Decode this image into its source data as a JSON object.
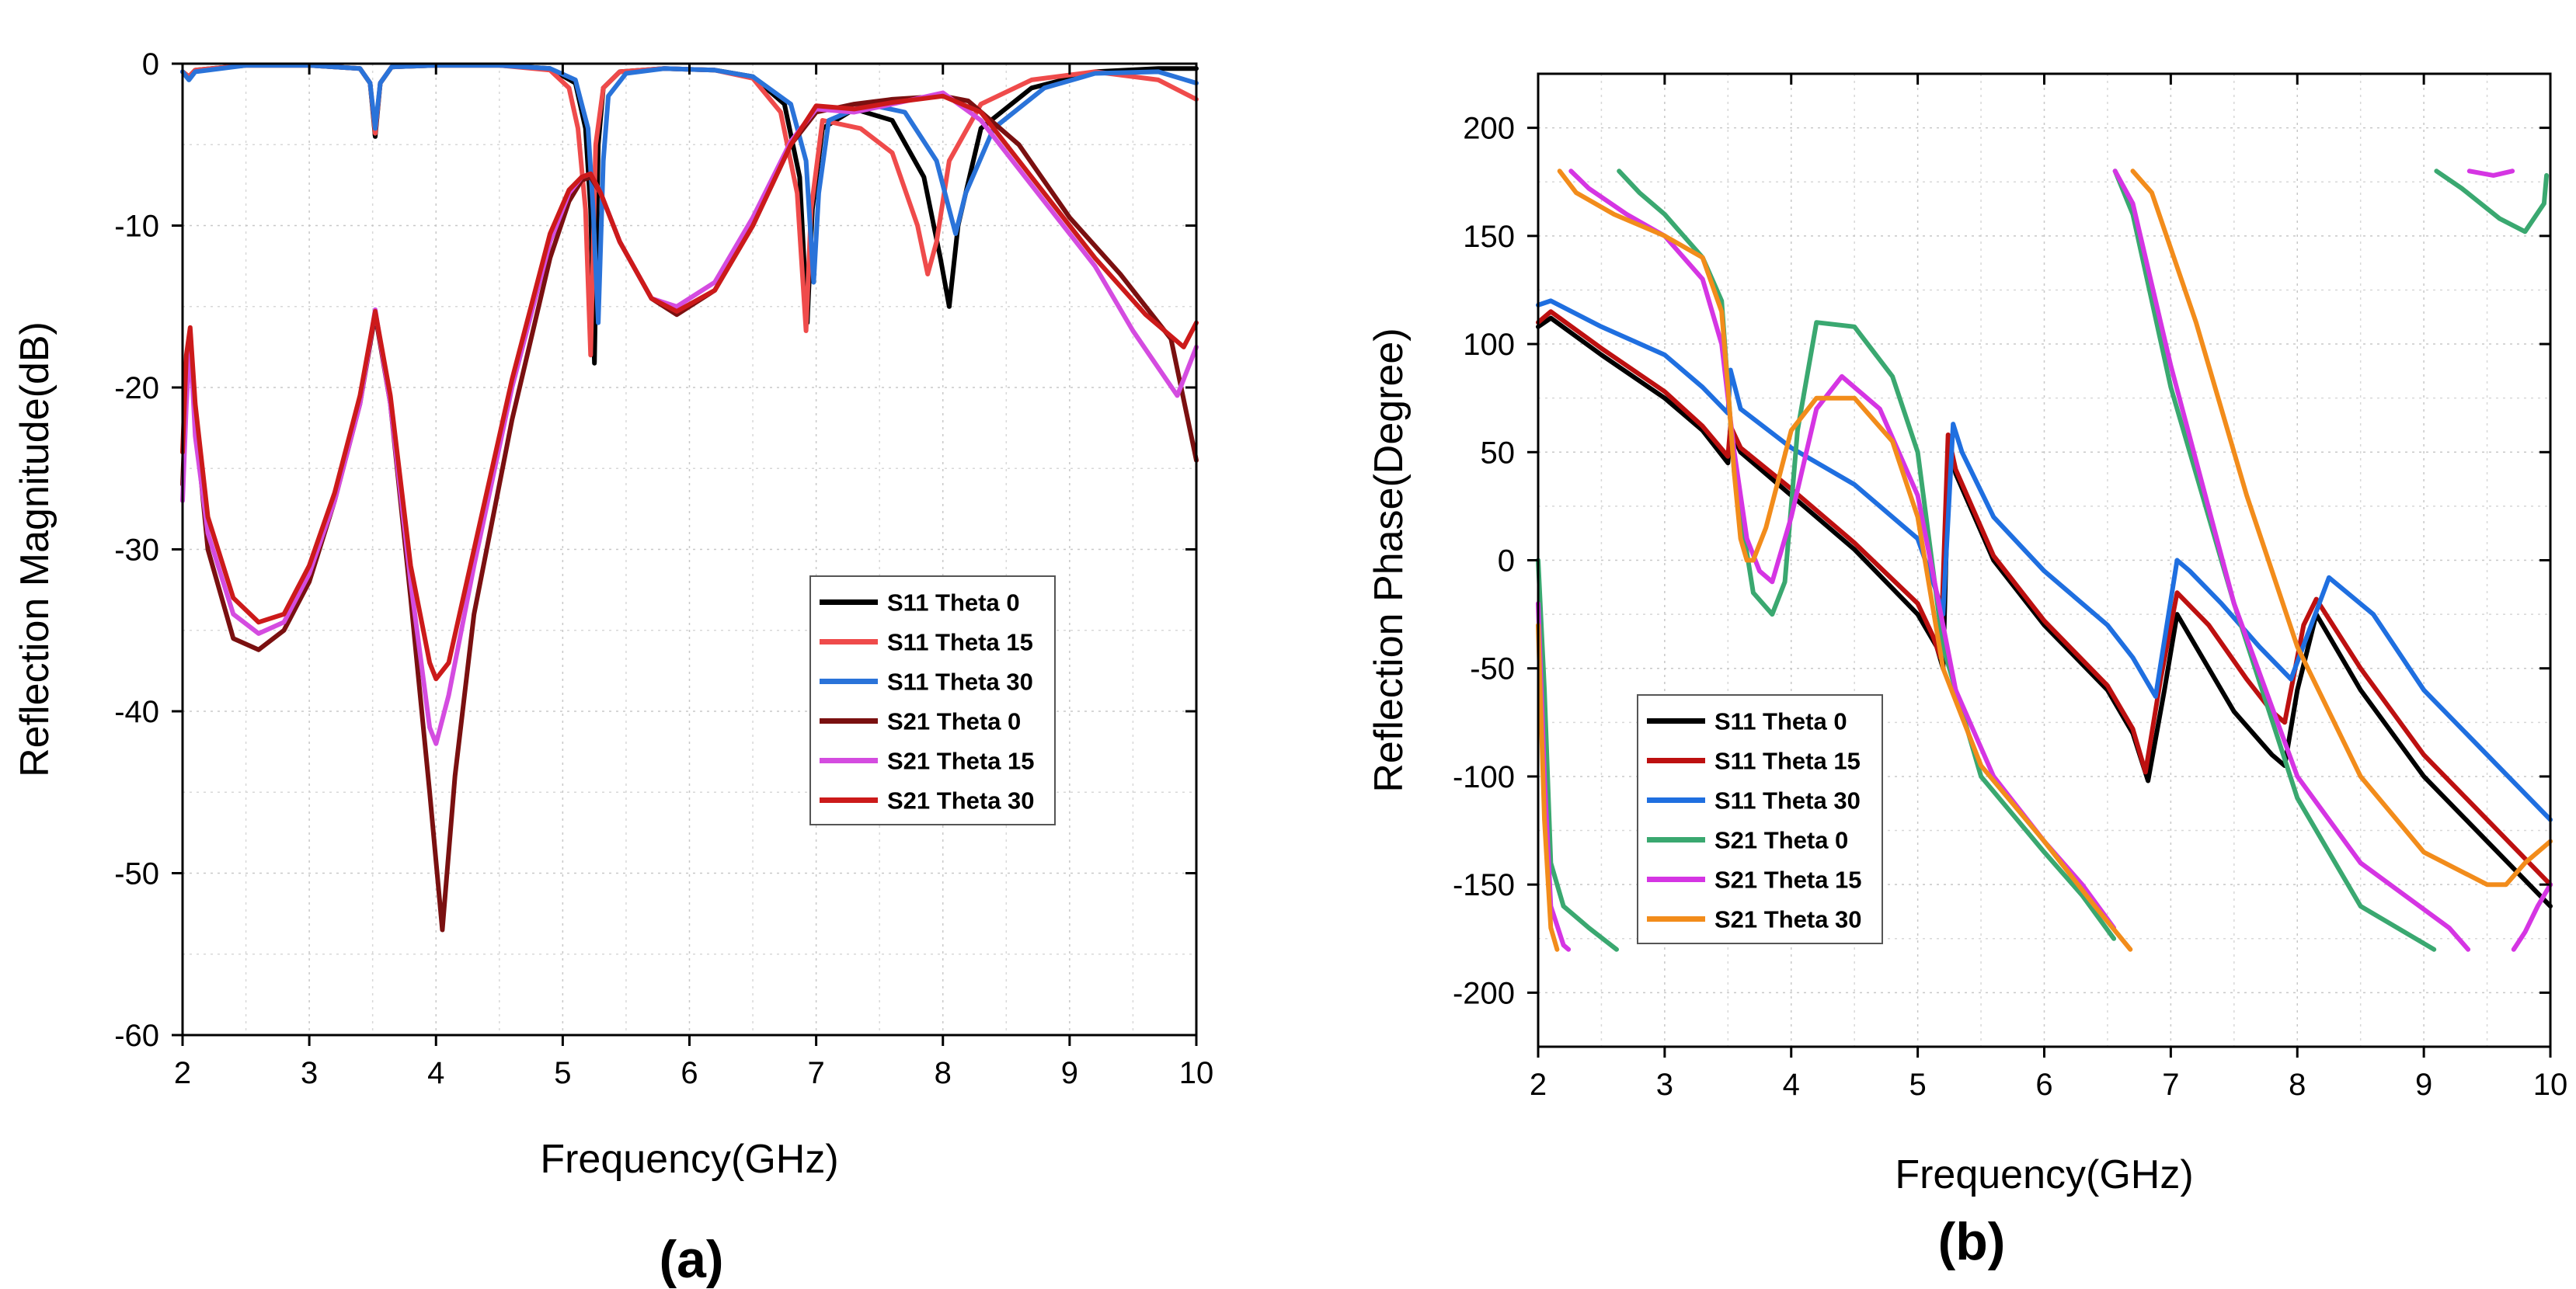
{
  "chart_data": [
    {
      "type": "line",
      "panel_label": "(a)",
      "xlabel": "Frequency(GHz)",
      "ylabel": "Reflection Magnitude(dB)",
      "xlim": [
        2,
        10
      ],
      "ylim": [
        -60,
        0
      ],
      "xticks": [
        2,
        3,
        4,
        5,
        6,
        7,
        8,
        9,
        10
      ],
      "yticks": [
        0,
        -10,
        -20,
        -30,
        -40,
        -50,
        -60
      ],
      "grid": true,
      "legend_position": "center-right",
      "series": [
        {
          "name": "S11 Theta 0",
          "color": "#000000",
          "x": [
            2,
            2.05,
            2.1,
            2.5,
            3,
            3.4,
            3.48,
            3.52,
            3.56,
            3.65,
            4,
            4.5,
            4.9,
            5.1,
            5.18,
            5.22,
            5.25,
            5.28,
            5.32,
            5.45,
            5.8,
            6.2,
            6.5,
            6.75,
            6.87,
            6.93,
            6.97,
            7.05,
            7.3,
            7.6,
            7.85,
            7.98,
            8.05,
            8.12,
            8.3,
            8.7,
            9.2,
            9.7,
            10
          ],
          "y": [
            -0.5,
            -0.8,
            -0.4,
            -0.1,
            -0.1,
            -0.3,
            -1.2,
            -4.5,
            -1.2,
            -0.2,
            -0.1,
            -0.1,
            -0.3,
            -1.2,
            -4,
            -9,
            -18.5,
            -5,
            -1.5,
            -0.5,
            -0.3,
            -0.4,
            -0.8,
            -2.5,
            -7,
            -16,
            -9,
            -4,
            -2.8,
            -3.5,
            -7,
            -12,
            -15,
            -10,
            -4,
            -1.5,
            -0.5,
            -0.3,
            -0.3
          ]
        },
        {
          "name": "S11 Theta 15",
          "color": "#ef4b4b",
          "x": [
            2,
            2.05,
            2.1,
            2.5,
            3,
            3.4,
            3.48,
            3.52,
            3.56,
            3.65,
            4,
            4.5,
            4.9,
            5.05,
            5.12,
            5.18,
            5.22,
            5.26,
            5.32,
            5.45,
            5.8,
            6.2,
            6.5,
            6.72,
            6.85,
            6.92,
            6.96,
            7.05,
            7.35,
            7.6,
            7.8,
            7.88,
            7.95,
            8.05,
            8.3,
            8.7,
            9.2,
            9.7,
            10
          ],
          "y": [
            -0.5,
            -0.8,
            -0.4,
            -0.1,
            -0.1,
            -0.3,
            -1.2,
            -4.3,
            -1.2,
            -0.2,
            -0.1,
            -0.1,
            -0.4,
            -1.5,
            -4,
            -9,
            -18,
            -5,
            -1.5,
            -0.5,
            -0.3,
            -0.4,
            -0.9,
            -3,
            -8,
            -16.5,
            -9,
            -3.5,
            -4,
            -5.5,
            -10,
            -13,
            -11,
            -6,
            -2.5,
            -1,
            -0.5,
            -1,
            -2.2
          ]
        },
        {
          "name": "S11 Theta 30",
          "color": "#2a73d9",
          "x": [
            2,
            2.05,
            2.1,
            2.5,
            3,
            3.4,
            3.48,
            3.52,
            3.56,
            3.65,
            4,
            4.5,
            4.9,
            5.1,
            5.2,
            5.24,
            5.28,
            5.32,
            5.36,
            5.5,
            5.8,
            6.2,
            6.5,
            6.8,
            6.92,
            6.98,
            7.02,
            7.1,
            7.4,
            7.7,
            7.95,
            8.05,
            8.1,
            8.18,
            8.4,
            8.8,
            9.2,
            9.7,
            10
          ],
          "y": [
            -0.5,
            -1,
            -0.5,
            -0.1,
            -0.1,
            -0.3,
            -1.2,
            -4,
            -1.2,
            -0.2,
            -0.1,
            -0.1,
            -0.3,
            -1,
            -4,
            -9,
            -16,
            -6,
            -2,
            -0.6,
            -0.3,
            -0.4,
            -0.8,
            -2.5,
            -6,
            -13.5,
            -8,
            -3.5,
            -2.5,
            -3,
            -6,
            -9,
            -10.5,
            -8,
            -4,
            -1.5,
            -0.6,
            -0.5,
            -1.2
          ]
        },
        {
          "name": "S21 Theta 0",
          "color": "#7a1010",
          "x": [
            2,
            2.03,
            2.06,
            2.1,
            2.2,
            2.4,
            2.6,
            2.8,
            3,
            3.2,
            3.4,
            3.52,
            3.64,
            3.8,
            3.95,
            4.05,
            4.15,
            4.3,
            4.6,
            4.9,
            5.05,
            5.15,
            5.22,
            5.3,
            5.45,
            5.7,
            5.9,
            6.2,
            6.5,
            6.8,
            7,
            7.3,
            7.6,
            8,
            8.2,
            8.6,
            9,
            9.4,
            9.8,
            10
          ],
          "y": [
            -26,
            -20,
            -16.5,
            -22,
            -30,
            -35.5,
            -36.2,
            -35,
            -32,
            -27,
            -21,
            -15.5,
            -21,
            -33,
            -45,
            -53.5,
            -44,
            -34,
            -22,
            -12,
            -8.5,
            -7.2,
            -7,
            -8,
            -11,
            -14.5,
            -15.5,
            -14,
            -10,
            -5,
            -3,
            -2.5,
            -2.2,
            -2,
            -2.3,
            -5,
            -9.5,
            -13,
            -17,
            -24.5
          ]
        },
        {
          "name": "S21 Theta 15",
          "color": "#d44ce0",
          "x": [
            2,
            2.03,
            2.06,
            2.1,
            2.2,
            2.4,
            2.6,
            2.8,
            3,
            3.2,
            3.4,
            3.52,
            3.64,
            3.8,
            3.95,
            4,
            4.1,
            4.3,
            4.6,
            4.9,
            5.05,
            5.15,
            5.22,
            5.3,
            5.45,
            5.7,
            5.9,
            6.2,
            6.5,
            6.8,
            7,
            7.3,
            7.6,
            8,
            8.3,
            8.7,
            9.2,
            9.5,
            9.85,
            10
          ],
          "y": [
            -27,
            -21,
            -17,
            -23,
            -29,
            -34,
            -35.2,
            -34.5,
            -31.5,
            -27,
            -21,
            -15.2,
            -21,
            -32,
            -41,
            -42,
            -39,
            -31,
            -20,
            -11,
            -8,
            -7,
            -6.8,
            -8,
            -11,
            -14.5,
            -15,
            -13.5,
            -9.5,
            -4.8,
            -2.8,
            -3,
            -2.5,
            -1.8,
            -3.5,
            -7.5,
            -12.5,
            -16.5,
            -20.5,
            -17.5
          ]
        },
        {
          "name": "S21 Theta 30",
          "color": "#cc1a1a",
          "x": [
            2,
            2.03,
            2.06,
            2.1,
            2.2,
            2.4,
            2.6,
            2.8,
            3,
            3.2,
            3.4,
            3.52,
            3.64,
            3.8,
            3.95,
            4,
            4.1,
            4.3,
            4.6,
            4.9,
            5.05,
            5.15,
            5.22,
            5.3,
            5.45,
            5.7,
            5.9,
            6.2,
            6.5,
            6.8,
            7,
            7.3,
            7.6,
            8,
            8.3,
            8.7,
            9.2,
            9.6,
            9.9,
            10
          ],
          "y": [
            -24,
            -18,
            -16.3,
            -21,
            -28,
            -33,
            -34.5,
            -34,
            -31,
            -26.5,
            -20.5,
            -15.3,
            -20.5,
            -31,
            -37,
            -38,
            -37,
            -30,
            -19.5,
            -10.5,
            -7.8,
            -7,
            -6.8,
            -8,
            -11,
            -14.5,
            -15.3,
            -14,
            -10,
            -5,
            -2.6,
            -2.8,
            -2.4,
            -2,
            -3,
            -7,
            -12,
            -15.5,
            -17.5,
            -16
          ]
        }
      ]
    },
    {
      "type": "line",
      "panel_label": "(b)",
      "xlabel": "Frequency(GHz)",
      "ylabel": "Reflection Phase(Degree)",
      "xlim": [
        2,
        10
      ],
      "ylim": [
        -225,
        225
      ],
      "xticks": [
        2,
        3,
        4,
        5,
        6,
        7,
        8,
        9,
        10
      ],
      "yticks": [
        200,
        150,
        100,
        50,
        0,
        -50,
        -100,
        -150,
        -200
      ],
      "grid": true,
      "legend_position": "lower-left",
      "series": [
        {
          "name": "S11 Theta 0",
          "color": "#000000",
          "x": [
            2,
            2.1,
            2.5,
            3,
            3.3,
            3.5,
            3.52,
            3.6,
            4,
            4.5,
            5,
            5.15,
            5.2,
            5.25,
            5.3,
            5.6,
            6,
            6.5,
            6.7,
            6.82,
            6.95,
            7.05,
            7.2,
            7.5,
            7.8,
            7.9,
            8,
            8.15,
            8.5,
            9,
            9.5,
            10
          ],
          "y": [
            108,
            112,
            95,
            75,
            60,
            45,
            60,
            50,
            30,
            5,
            -25,
            -40,
            -50,
            55,
            40,
            0,
            -30,
            -60,
            -80,
            -102,
            -60,
            -25,
            -40,
            -70,
            -90,
            -95,
            -60,
            -25,
            -60,
            -100,
            -130,
            -160
          ]
        },
        {
          "name": "S11 Theta 15",
          "color": "#bd1010",
          "x": [
            2,
            2.1,
            2.5,
            3,
            3.3,
            3.5,
            3.52,
            3.6,
            4,
            4.5,
            5,
            5.12,
            5.18,
            5.24,
            5.3,
            5.6,
            6,
            6.5,
            6.7,
            6.8,
            6.92,
            7.05,
            7.3,
            7.6,
            7.8,
            7.9,
            8.05,
            8.15,
            8.5,
            9,
            9.5,
            10
          ],
          "y": [
            110,
            115,
            98,
            78,
            62,
            48,
            62,
            52,
            33,
            8,
            -20,
            -35,
            -45,
            58,
            42,
            2,
            -28,
            -58,
            -78,
            -98,
            -55,
            -15,
            -30,
            -55,
            -70,
            -75,
            -30,
            -18,
            -50,
            -90,
            -120,
            -150
          ]
        },
        {
          "name": "S11 Theta 30",
          "color": "#1f6fe0",
          "x": [
            2,
            2.1,
            2.5,
            3,
            3.3,
            3.5,
            3.52,
            3.6,
            4,
            4.5,
            5,
            5.15,
            5.2,
            5.28,
            5.35,
            5.6,
            6,
            6.5,
            6.7,
            6.88,
            7.05,
            7.15,
            7.4,
            7.7,
            7.95,
            8.25,
            8.6,
            9,
            9.5,
            10
          ],
          "y": [
            118,
            120,
            108,
            95,
            80,
            68,
            88,
            70,
            52,
            35,
            10,
            -15,
            -25,
            63,
            50,
            20,
            -5,
            -30,
            -45,
            -63,
            0,
            -5,
            -20,
            -40,
            -55,
            -8,
            -25,
            -60,
            -90,
            -120
          ]
        },
        {
          "name": "S21 Theta 0",
          "color": "#3aa870",
          "x": [
            2,
            2.05,
            2.1,
            2.2,
            2.4,
            2.62,
            2.64,
            2.8,
            3,
            3.3,
            3.45,
            3.5,
            3.55,
            3.7,
            3.85,
            3.95,
            4.05,
            4.2,
            4.5,
            4.8,
            5,
            5.2,
            5.5,
            6,
            6.3,
            6.55,
            6.56,
            6.7,
            7,
            7.5,
            8,
            8.5,
            9.08,
            9.1,
            9.3,
            9.6,
            9.8,
            9.95,
            9.97,
            10
          ],
          "y": [
            0,
            -60,
            -140,
            -160,
            -170,
            -180,
            180,
            170,
            160,
            140,
            120,
            80,
            40,
            -15,
            -25,
            -10,
            60,
            110,
            108,
            85,
            50,
            -40,
            -100,
            -135,
            -155,
            -175,
            180,
            160,
            80,
            -20,
            -110,
            -160,
            -180,
            180,
            172,
            158,
            152,
            165,
            178,
            -180
          ]
        },
        {
          "name": "S21 Theta 15",
          "color": "#d535e3",
          "x": [
            2,
            2.05,
            2.1,
            2.2,
            2.24,
            2.26,
            2.4,
            2.7,
            3,
            3.3,
            3.45,
            3.55,
            3.65,
            3.75,
            3.85,
            4,
            4.2,
            4.4,
            4.7,
            5,
            5.3,
            5.6,
            6,
            6.3,
            6.55,
            6.56,
            6.7,
            7,
            7.5,
            8,
            8.5,
            9.2,
            9.35,
            9.36,
            9.55,
            9.7,
            9.71,
            9.8,
            9.9,
            10
          ],
          "y": [
            -20,
            -100,
            -160,
            -178,
            -180,
            180,
            172,
            160,
            150,
            130,
            100,
            50,
            10,
            -5,
            -10,
            20,
            70,
            85,
            70,
            30,
            -60,
            -100,
            -130,
            -150,
            -170,
            180,
            165,
            90,
            -20,
            -100,
            -140,
            -170,
            -180,
            180,
            178,
            180,
            -180,
            -172,
            -160,
            -150
          ]
        },
        {
          "name": "S21 Theta 30",
          "color": "#f28c1b",
          "x": [
            2,
            2.05,
            2.1,
            2.15,
            2.17,
            2.3,
            2.6,
            3,
            3.3,
            3.45,
            3.5,
            3.55,
            3.6,
            3.65,
            3.7,
            3.8,
            4,
            4.2,
            4.5,
            4.8,
            5,
            5.2,
            5.5,
            6,
            6.4,
            6.68,
            6.7,
            6.85,
            7.2,
            7.6,
            8,
            8.5,
            9,
            9.5,
            9.65,
            9.8,
            10
          ],
          "y": [
            -30,
            -120,
            -170,
            -180,
            180,
            170,
            160,
            150,
            140,
            115,
            80,
            40,
            10,
            0,
            0,
            15,
            60,
            75,
            75,
            55,
            20,
            -50,
            -95,
            -130,
            -160,
            -180,
            180,
            170,
            110,
            30,
            -40,
            -100,
            -135,
            -150,
            -150,
            -140,
            -130
          ]
        }
      ]
    }
  ]
}
